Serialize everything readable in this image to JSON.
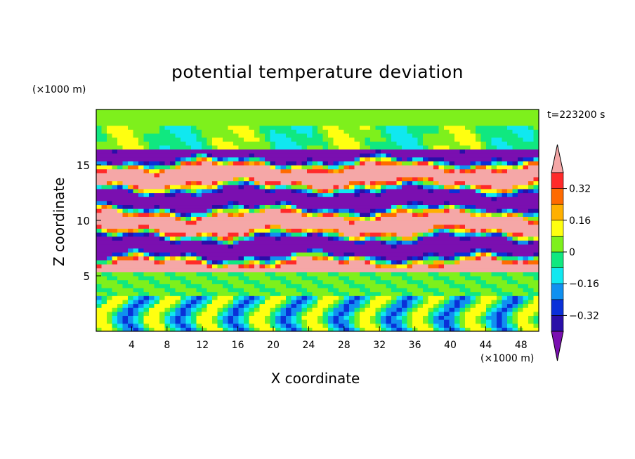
{
  "chart_data": {
    "type": "heatmap",
    "title": "potential temperature deviation",
    "xlabel": "X coordinate",
    "ylabel": "Z coordinate",
    "x_unit": "(×1000 m)",
    "z_unit": "(×1000 m)",
    "time_label": "t=223200 s",
    "xlim": [
      0,
      50
    ],
    "zlim": [
      0,
      20
    ],
    "x_ticks": [
      4,
      8,
      12,
      16,
      20,
      24,
      28,
      32,
      36,
      40,
      44,
      48
    ],
    "z_ticks": [
      5,
      10,
      15
    ],
    "colorbar": {
      "levels": [
        -0.4,
        -0.32,
        -0.24,
        -0.16,
        -0.08,
        0,
        0.08,
        0.16,
        0.24,
        0.32,
        0.4
      ],
      "tick_labels": [
        "0.32",
        "0.16",
        "0",
        "−0.16",
        "−0.32"
      ],
      "tick_values": [
        0.32,
        0.16,
        0,
        -0.16,
        -0.32
      ],
      "colors": [
        "#7a0fb0",
        "#2a0fa8",
        "#0a30d8",
        "#1090f0",
        "#10e8f0",
        "#10e880",
        "#7ef01c",
        "#ffff10",
        "#ffb000",
        "#ff6a00",
        "#ff2a2a",
        "#f5a7a7"
      ]
    }
  }
}
